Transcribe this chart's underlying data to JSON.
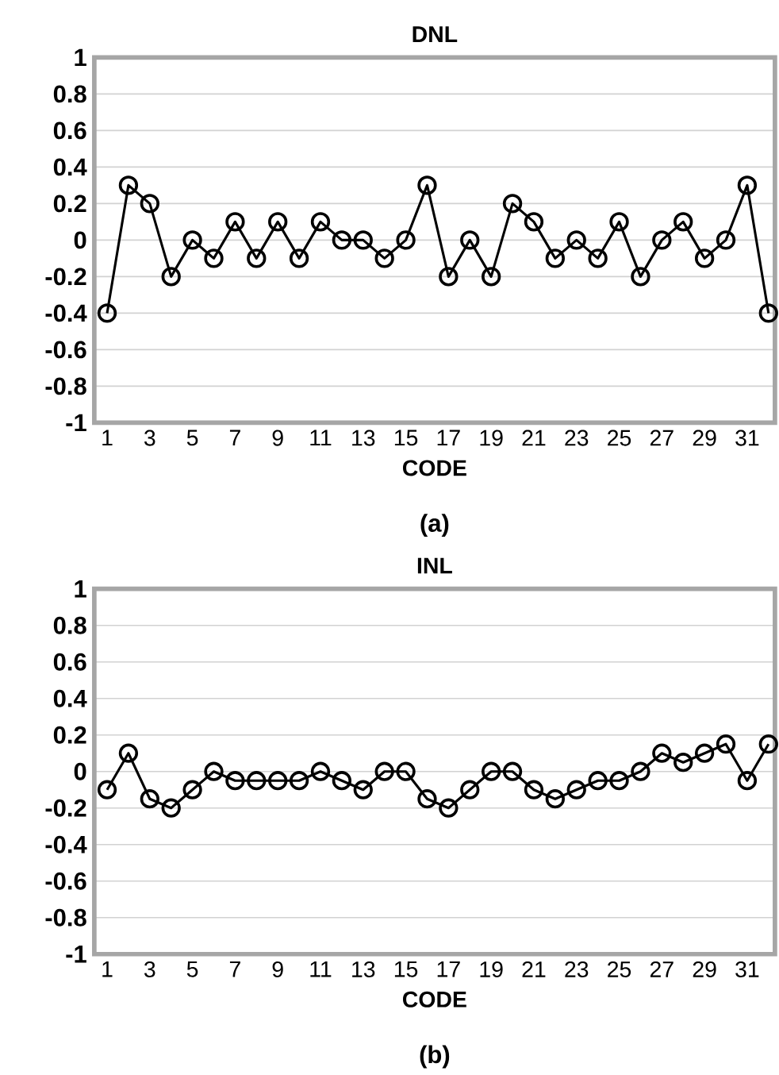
{
  "chart_data": [
    {
      "type": "line",
      "title": "DNL",
      "xlabel": "CODE",
      "annotations": [
        "(a)"
      ],
      "categories": [
        "1",
        null,
        "3",
        null,
        "5",
        null,
        "7",
        null,
        "9",
        null,
        "11",
        null,
        "13",
        null,
        "15",
        null,
        "17",
        null,
        "19",
        null,
        "21",
        null,
        "23",
        null,
        "25",
        null,
        "27",
        null,
        "29",
        null,
        "31",
        null
      ],
      "series": [
        {
          "color": "#000000",
          "values": [
            -0.4,
            0.3,
            0.2,
            -0.2,
            0,
            -0.1,
            0.1,
            -0.1,
            0.1,
            -0.1,
            0.1,
            0,
            0,
            -0.1,
            0,
            0.3,
            -0.2,
            0,
            -0.2,
            0.2,
            0.1,
            -0.1,
            0,
            -0.1,
            0.1,
            -0.2,
            0,
            0.1,
            -0.1,
            0,
            0.3,
            -0.4
          ]
        }
      ],
      "ylim": [
        -1,
        1
      ],
      "yticks": [
        -1,
        -0.8,
        -0.6,
        -0.4,
        -0.2,
        0,
        0.2,
        0.4,
        0.6,
        0.8,
        1
      ],
      "grid": "y",
      "marker": "circle",
      "line_style": "solid"
    },
    {
      "type": "line",
      "title": "INL",
      "xlabel": "CODE",
      "annotations": [
        "(b)"
      ],
      "categories": [
        "1",
        null,
        "3",
        null,
        "5",
        null,
        "7",
        null,
        "9",
        null,
        "11",
        null,
        "13",
        null,
        "15",
        null,
        "17",
        null,
        "19",
        null,
        "21",
        null,
        "23",
        null,
        "25",
        null,
        "27",
        null,
        "29",
        null,
        "31",
        null
      ],
      "series": [
        {
          "color": "#000000",
          "values": [
            -0.1,
            0.1,
            -0.15,
            -0.2,
            -0.1,
            0,
            -0.05,
            -0.05,
            -0.05,
            -0.05,
            0,
            -0.05,
            -0.1,
            0,
            0,
            -0.15,
            -0.2,
            -0.1,
            0,
            0,
            -0.1,
            -0.15,
            -0.1,
            -0.05,
            -0.05,
            0,
            0.1,
            0.05,
            0.1,
            0.15,
            -0.05,
            0.15
          ]
        }
      ],
      "ylim": [
        -1,
        1
      ],
      "yticks": [
        -1,
        -0.8,
        -0.6,
        -0.4,
        -0.2,
        0,
        0.2,
        0.4,
        0.6,
        0.8,
        1
      ],
      "grid": "y",
      "marker": "circle",
      "line_style": "solid"
    }
  ]
}
